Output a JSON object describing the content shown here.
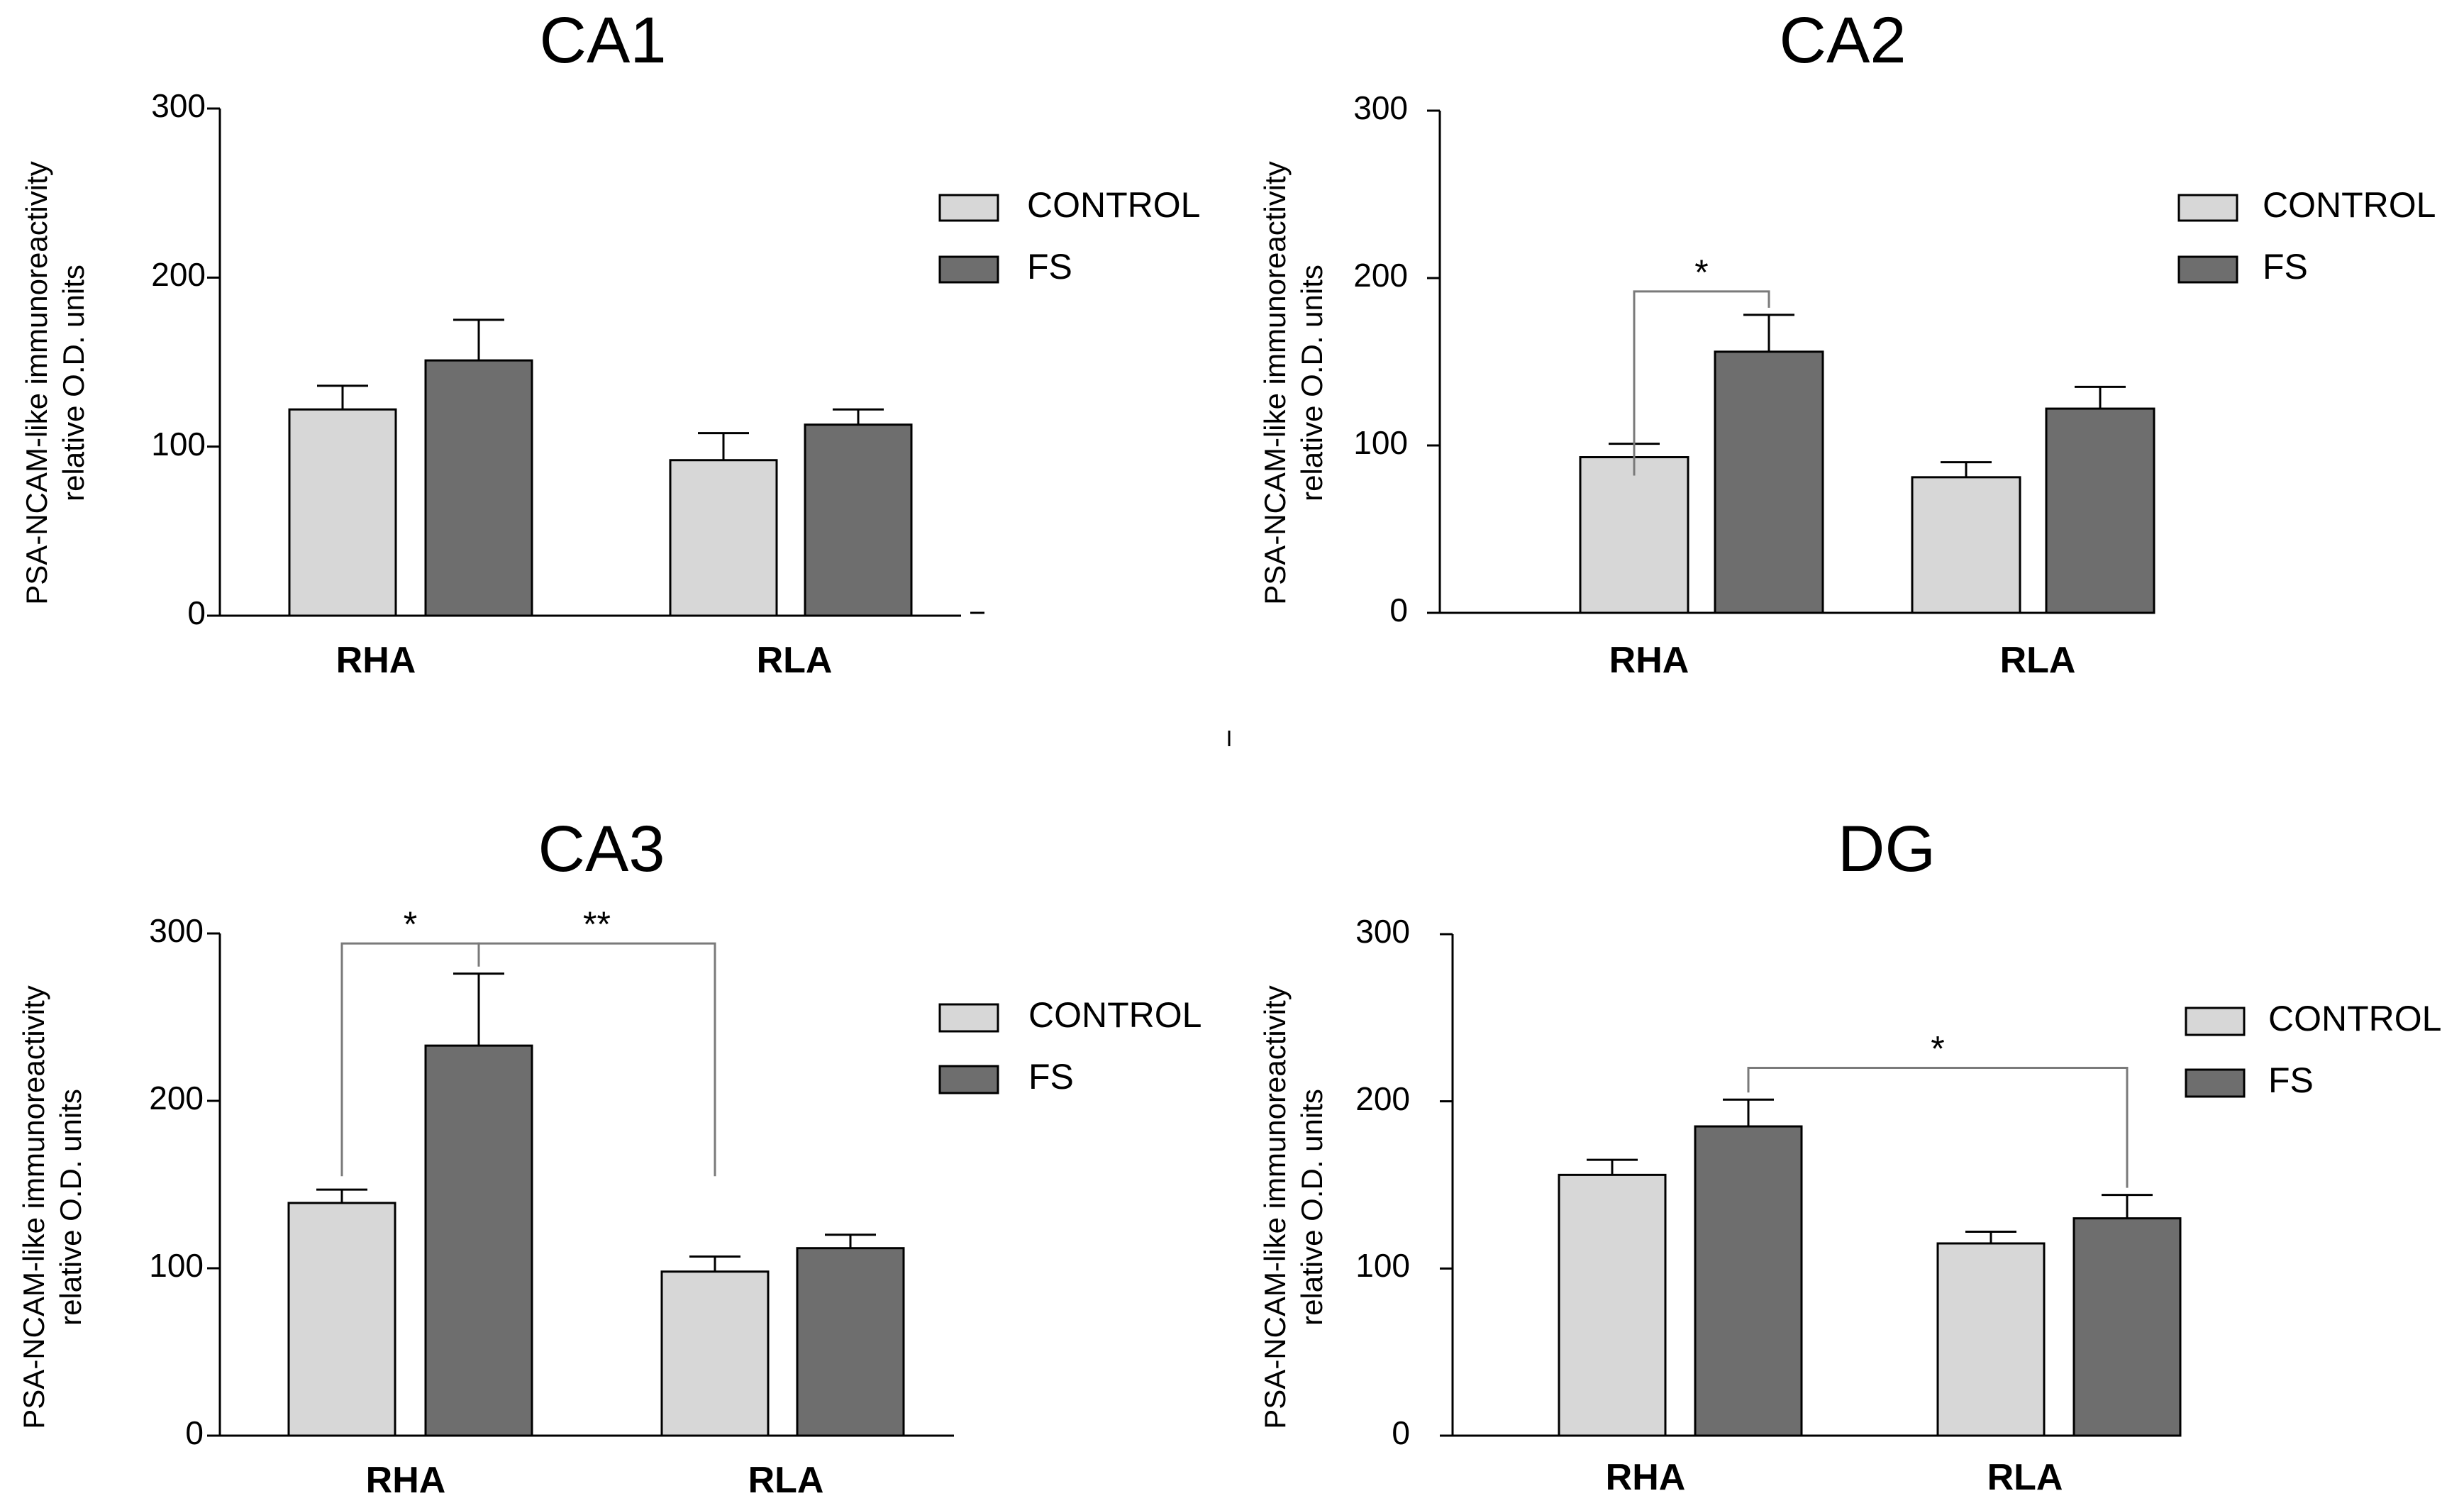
{
  "colors": {
    "control": "#d7d7d7",
    "fs": "#6e6e6e",
    "axis": "#000000",
    "bracket": "#7a7a7a"
  },
  "chart_data": [
    {
      "type": "bar",
      "title": "CA1",
      "ylabel_line1": "PSA-NCAM-like immunoreactivity",
      "ylabel_line2": "relative O.D. units",
      "categories": [
        "RHA",
        "RLA"
      ],
      "ylim": [
        0,
        300
      ],
      "yticks": [
        0,
        100,
        200,
        300
      ],
      "legend": [
        "CONTROL",
        "FS"
      ],
      "legend_position": "top-right",
      "series": [
        {
          "name": "CONTROL",
          "values": [
            122,
            92
          ],
          "errors": [
            14,
            16
          ]
        },
        {
          "name": "FS",
          "values": [
            151,
            113
          ],
          "errors": [
            24,
            9
          ]
        }
      ],
      "annotations": []
    },
    {
      "type": "bar",
      "title": "CA2",
      "ylabel_line1": "PSA-NCAM-like immunoreactivity",
      "ylabel_line2": "relative O.D. units",
      "categories": [
        "RHA",
        "RLA"
      ],
      "ylim": [
        0,
        300
      ],
      "yticks": [
        0,
        100,
        200,
        300
      ],
      "legend": [
        "CONTROL",
        "FS"
      ],
      "legend_position": "top-right",
      "series": [
        {
          "name": "CONTROL",
          "values": [
            93,
            81
          ],
          "errors": [
            8,
            9
          ]
        },
        {
          "name": "FS",
          "values": [
            156,
            122
          ],
          "errors": [
            22,
            13
          ]
        }
      ],
      "annotations": [
        {
          "label": "*",
          "from": {
            "category": 0,
            "series": 0
          },
          "to": {
            "category": 0,
            "series": 1
          },
          "level": 192
        }
      ]
    },
    {
      "type": "bar",
      "title": "CA3",
      "ylabel_line1": "PSA-NCAM-like immunoreactivity",
      "ylabel_line2": "relative O.D. units",
      "categories": [
        "RHA",
        "RLA"
      ],
      "ylim": [
        0,
        300
      ],
      "yticks": [
        0,
        100,
        200,
        300
      ],
      "legend": [
        "CONTROL",
        "FS"
      ],
      "legend_position": "top-right",
      "series": [
        {
          "name": "CONTROL",
          "values": [
            139,
            98
          ],
          "errors": [
            8,
            9
          ]
        },
        {
          "name": "FS",
          "values": [
            233,
            112
          ],
          "errors": [
            43,
            8
          ]
        }
      ],
      "annotations": [
        {
          "label": "*",
          "from": {
            "category": 0,
            "series": 0
          },
          "to": {
            "category": 0,
            "series": 1
          },
          "level": 294
        },
        {
          "label": "**",
          "from": {
            "category": 0,
            "series": 1
          },
          "to": {
            "category": 1,
            "series": 0
          },
          "level": 294
        }
      ]
    },
    {
      "type": "bar",
      "title": "DG",
      "ylabel_line1": "PSA-NCAM-like immunoreactivity",
      "ylabel_line2": "relative O.D. units",
      "categories": [
        "RHA",
        "RLA"
      ],
      "ylim": [
        0,
        300
      ],
      "yticks": [
        0,
        100,
        200,
        300
      ],
      "legend": [
        "CONTROL",
        "FS"
      ],
      "legend_position": "top-right",
      "series": [
        {
          "name": "CONTROL",
          "values": [
            156,
            115
          ],
          "errors": [
            9,
            7
          ]
        },
        {
          "name": "FS",
          "values": [
            185,
            130
          ],
          "errors": [
            16,
            14
          ]
        }
      ],
      "annotations": [
        {
          "label": "*",
          "from": {
            "category": 0,
            "series": 1
          },
          "to": {
            "category": 1,
            "series": 1
          },
          "level": 220
        }
      ]
    }
  ]
}
